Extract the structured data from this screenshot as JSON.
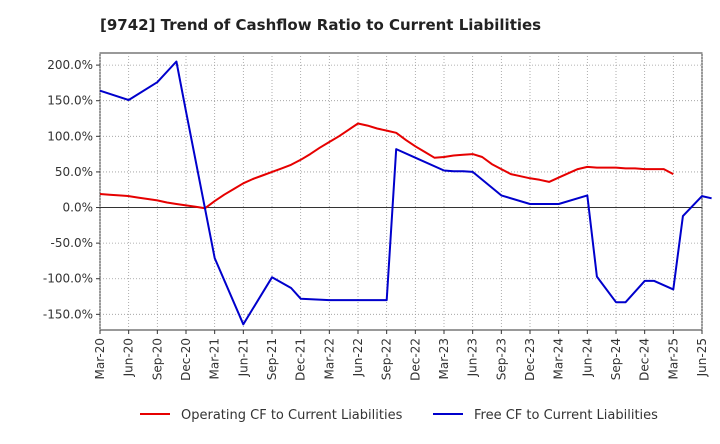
{
  "chart_data": {
    "type": "line",
    "title": "[9742]  Trend of Cashflow Ratio to Current Liabilities",
    "xlabel": "",
    "ylabel": "",
    "ylim": [
      -172,
      217
    ],
    "y_ticks": [
      "200.0%",
      "150.0%",
      "100.0%",
      "50.0%",
      "0.0%",
      "-50.0%",
      "-100.0%",
      "-150.0%"
    ],
    "y_tick_values": [
      200,
      150,
      100,
      50,
      0,
      -50,
      -100,
      -150
    ],
    "x_tick_labels": [
      "Mar-20",
      "Jun-20",
      "Sep-20",
      "Dec-20",
      "Mar-21",
      "Jun-21",
      "Sep-21",
      "Dec-21",
      "Mar-22",
      "Jun-22",
      "Sep-22",
      "Dec-22",
      "Mar-23",
      "Jun-23",
      "Sep-23",
      "Dec-23",
      "Mar-24",
      "Jun-24",
      "Sep-24",
      "Dec-24",
      "Mar-25",
      "Jun-25"
    ],
    "grid": true,
    "legend_position": "bottom",
    "series": [
      {
        "name": "Operating CF to Current Liabilities",
        "color": "#e60000",
        "x": [
          0,
          1,
          2,
          3,
          4,
          5,
          6,
          7,
          8,
          9,
          10,
          11,
          12,
          13,
          14,
          15,
          16,
          17,
          18,
          19,
          20,
          21,
          22,
          23,
          24,
          25,
          26,
          27,
          28,
          29,
          30,
          31,
          32,
          33,
          34,
          35,
          36,
          37,
          38,
          39,
          40,
          41,
          42,
          43,
          44,
          45,
          46,
          47,
          48,
          49,
          50,
          51,
          52,
          53,
          54,
          55,
          56,
          57,
          58,
          59,
          60
        ],
        "values": [
          19,
          18,
          17,
          16,
          14,
          12,
          10,
          7,
          5,
          3,
          1,
          -1,
          9,
          18,
          26,
          34,
          40,
          45,
          50,
          55,
          60,
          67,
          75,
          84,
          92,
          100,
          109,
          118,
          115,
          111,
          108,
          105,
          95,
          86,
          78,
          70,
          71,
          73,
          74,
          75,
          71,
          61,
          54,
          47,
          44,
          41,
          39,
          36,
          42,
          48,
          54,
          57,
          56,
          56,
          56,
          55,
          55,
          54,
          54,
          54,
          47
        ],
        "note_dense": false
      },
      {
        "name": "Free CF to Current Liabilities",
        "color": "#0000cc",
        "x": [
          0,
          3,
          6,
          8,
          9,
          12,
          15,
          18,
          20,
          21,
          24,
          25,
          27,
          30,
          31,
          33,
          36,
          37,
          38,
          39,
          42,
          45,
          47,
          48,
          51,
          52,
          54,
          55,
          57,
          58,
          60,
          61,
          63,
          64
        ],
        "values": [
          164,
          151,
          176,
          205,
          135,
          -71,
          -164,
          -98,
          -113,
          -128,
          -130,
          -130,
          -130,
          -130,
          82,
          70,
          52,
          51,
          51,
          50,
          17,
          5,
          5,
          5,
          17,
          -97,
          -133,
          -133,
          -103,
          -103,
          -115,
          -12,
          16,
          13
        ],
        "note_dense": false
      }
    ]
  }
}
